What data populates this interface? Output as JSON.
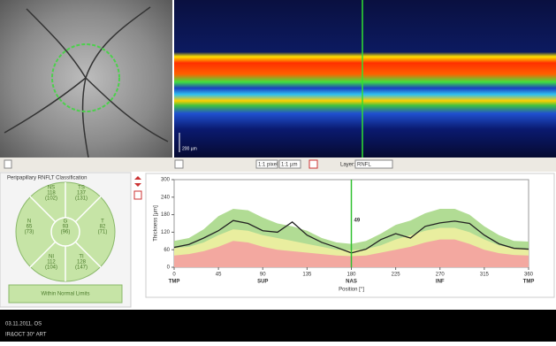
{
  "toolbar": {
    "zoom_pixel": "1:1 pixel",
    "zoom_um": "1:1 µm",
    "layer_label": "Layer:",
    "layer_value": "RNFL"
  },
  "oct": {
    "scale": "200 µm"
  },
  "classification": {
    "title": "Peripapillary RNFLT Classification",
    "sectors": [
      {
        "name": "NS",
        "value": "118",
        "normal": "(102)"
      },
      {
        "name": "TS",
        "value": "137",
        "normal": "(131)"
      },
      {
        "name": "N",
        "value": "65",
        "normal": "(73)"
      },
      {
        "name": "G",
        "value": "93",
        "normal": "(96)"
      },
      {
        "name": "T",
        "value": "82",
        "normal": "(71)"
      },
      {
        "name": "NI",
        "value": "112",
        "normal": "(104)"
      },
      {
        "name": "TI",
        "value": "128",
        "normal": "(147)"
      }
    ],
    "result": "Within Normal Limits"
  },
  "chart_data": {
    "type": "line",
    "ylabel": "Thickness [µm]",
    "xlabel": "Position [°]",
    "x": [
      0,
      15,
      30,
      45,
      60,
      75,
      90,
      105,
      120,
      135,
      150,
      165,
      180,
      195,
      210,
      225,
      240,
      255,
      270,
      285,
      300,
      315,
      330,
      345,
      360
    ],
    "series": [
      {
        "kind": "area",
        "color": "#a8d888",
        "values": [
          90,
          100,
          130,
          175,
          200,
          195,
          170,
          150,
          140,
          125,
          100,
          85,
          80,
          90,
          115,
          145,
          160,
          185,
          200,
          200,
          180,
          140,
          110,
          90,
          88
        ]
      },
      {
        "kind": "area",
        "color": "#f0f0a0",
        "values": [
          65,
          70,
          85,
          110,
          130,
          125,
          110,
          100,
          90,
          80,
          70,
          60,
          58,
          62,
          75,
          95,
          110,
          125,
          135,
          135,
          120,
          95,
          75,
          65,
          62
        ]
      },
      {
        "kind": "area",
        "color": "#f4a0a0",
        "values": [
          40,
          45,
          55,
          70,
          90,
          85,
          70,
          60,
          55,
          50,
          45,
          40,
          38,
          40,
          50,
          60,
          70,
          85,
          95,
          95,
          80,
          60,
          48,
          42,
          40
        ]
      },
      {
        "kind": "line",
        "color": "#222222",
        "values": [
          68,
          78,
          100,
          125,
          160,
          150,
          125,
          120,
          155,
          110,
          85,
          68,
          49,
          62,
          95,
          115,
          100,
          140,
          152,
          158,
          150,
          110,
          80,
          65,
          62
        ]
      }
    ],
    "xlim": [
      0,
      360
    ],
    "ylim": [
      0,
      300
    ],
    "xticks": [
      0,
      45,
      90,
      135,
      180,
      225,
      270,
      315,
      360
    ],
    "yticks": [
      0,
      60,
      120,
      180,
      240,
      300
    ],
    "sector_ticks": [
      {
        "value": 0,
        "label": "TMP"
      },
      {
        "value": 90,
        "label": "SUP"
      },
      {
        "value": 180,
        "label": "NAS"
      },
      {
        "value": 270,
        "label": "INF"
      },
      {
        "value": 360,
        "label": "TMP"
      }
    ],
    "cursor": {
      "x": 180,
      "label": "49"
    }
  },
  "footer": {
    "date": "03.11.2011, OS",
    "mode": "IR&OCT 30° ART"
  }
}
